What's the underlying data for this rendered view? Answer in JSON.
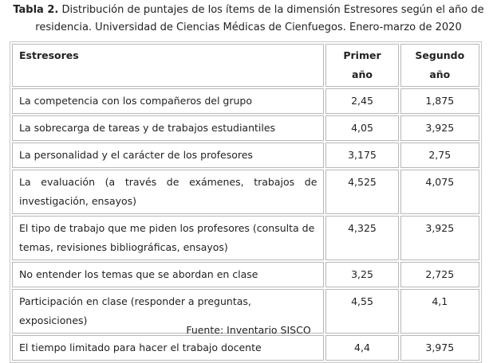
{
  "caption": {
    "label": "Tabla 2.",
    "text": "Distribución de puntajes de los ítems de la dimensión Estresores según el año de residencia. Universidad de Ciencias Médicas de Cienfuegos. Enero-marzo de 2020"
  },
  "table": {
    "headers": [
      "Estresores",
      "Primer año",
      "Segundo año"
    ],
    "rows": [
      [
        "La competencia con los compañeros del grupo",
        "2,45",
        "1,875"
      ],
      [
        "La sobrecarga de tareas y de trabajos estudiantiles",
        "4,05",
        "3,925"
      ],
      [
        "La personalidad y el carácter de los profesores",
        "3,175",
        "2,75"
      ],
      [
        "La evaluación (a través de exámenes, trabajos de investigación, ensayos)",
        "4,525",
        "4,075"
      ],
      [
        "El tipo de trabajo que me piden los profesores (consulta de temas, revisiones bibliográficas, ensayos)",
        "4,325",
        "3,925"
      ],
      [
        "No entender los temas que se abordan en clase",
        "3,25",
        "2,725"
      ],
      [
        "Participación en clase (responder a preguntas, exposiciones)",
        "4,55",
        "4,1"
      ],
      [
        "El tiempo limitado para hacer el trabajo docente",
        "4,4",
        "3,975"
      ]
    ]
  },
  "footer": "Fuente: Inventario SISCO"
}
